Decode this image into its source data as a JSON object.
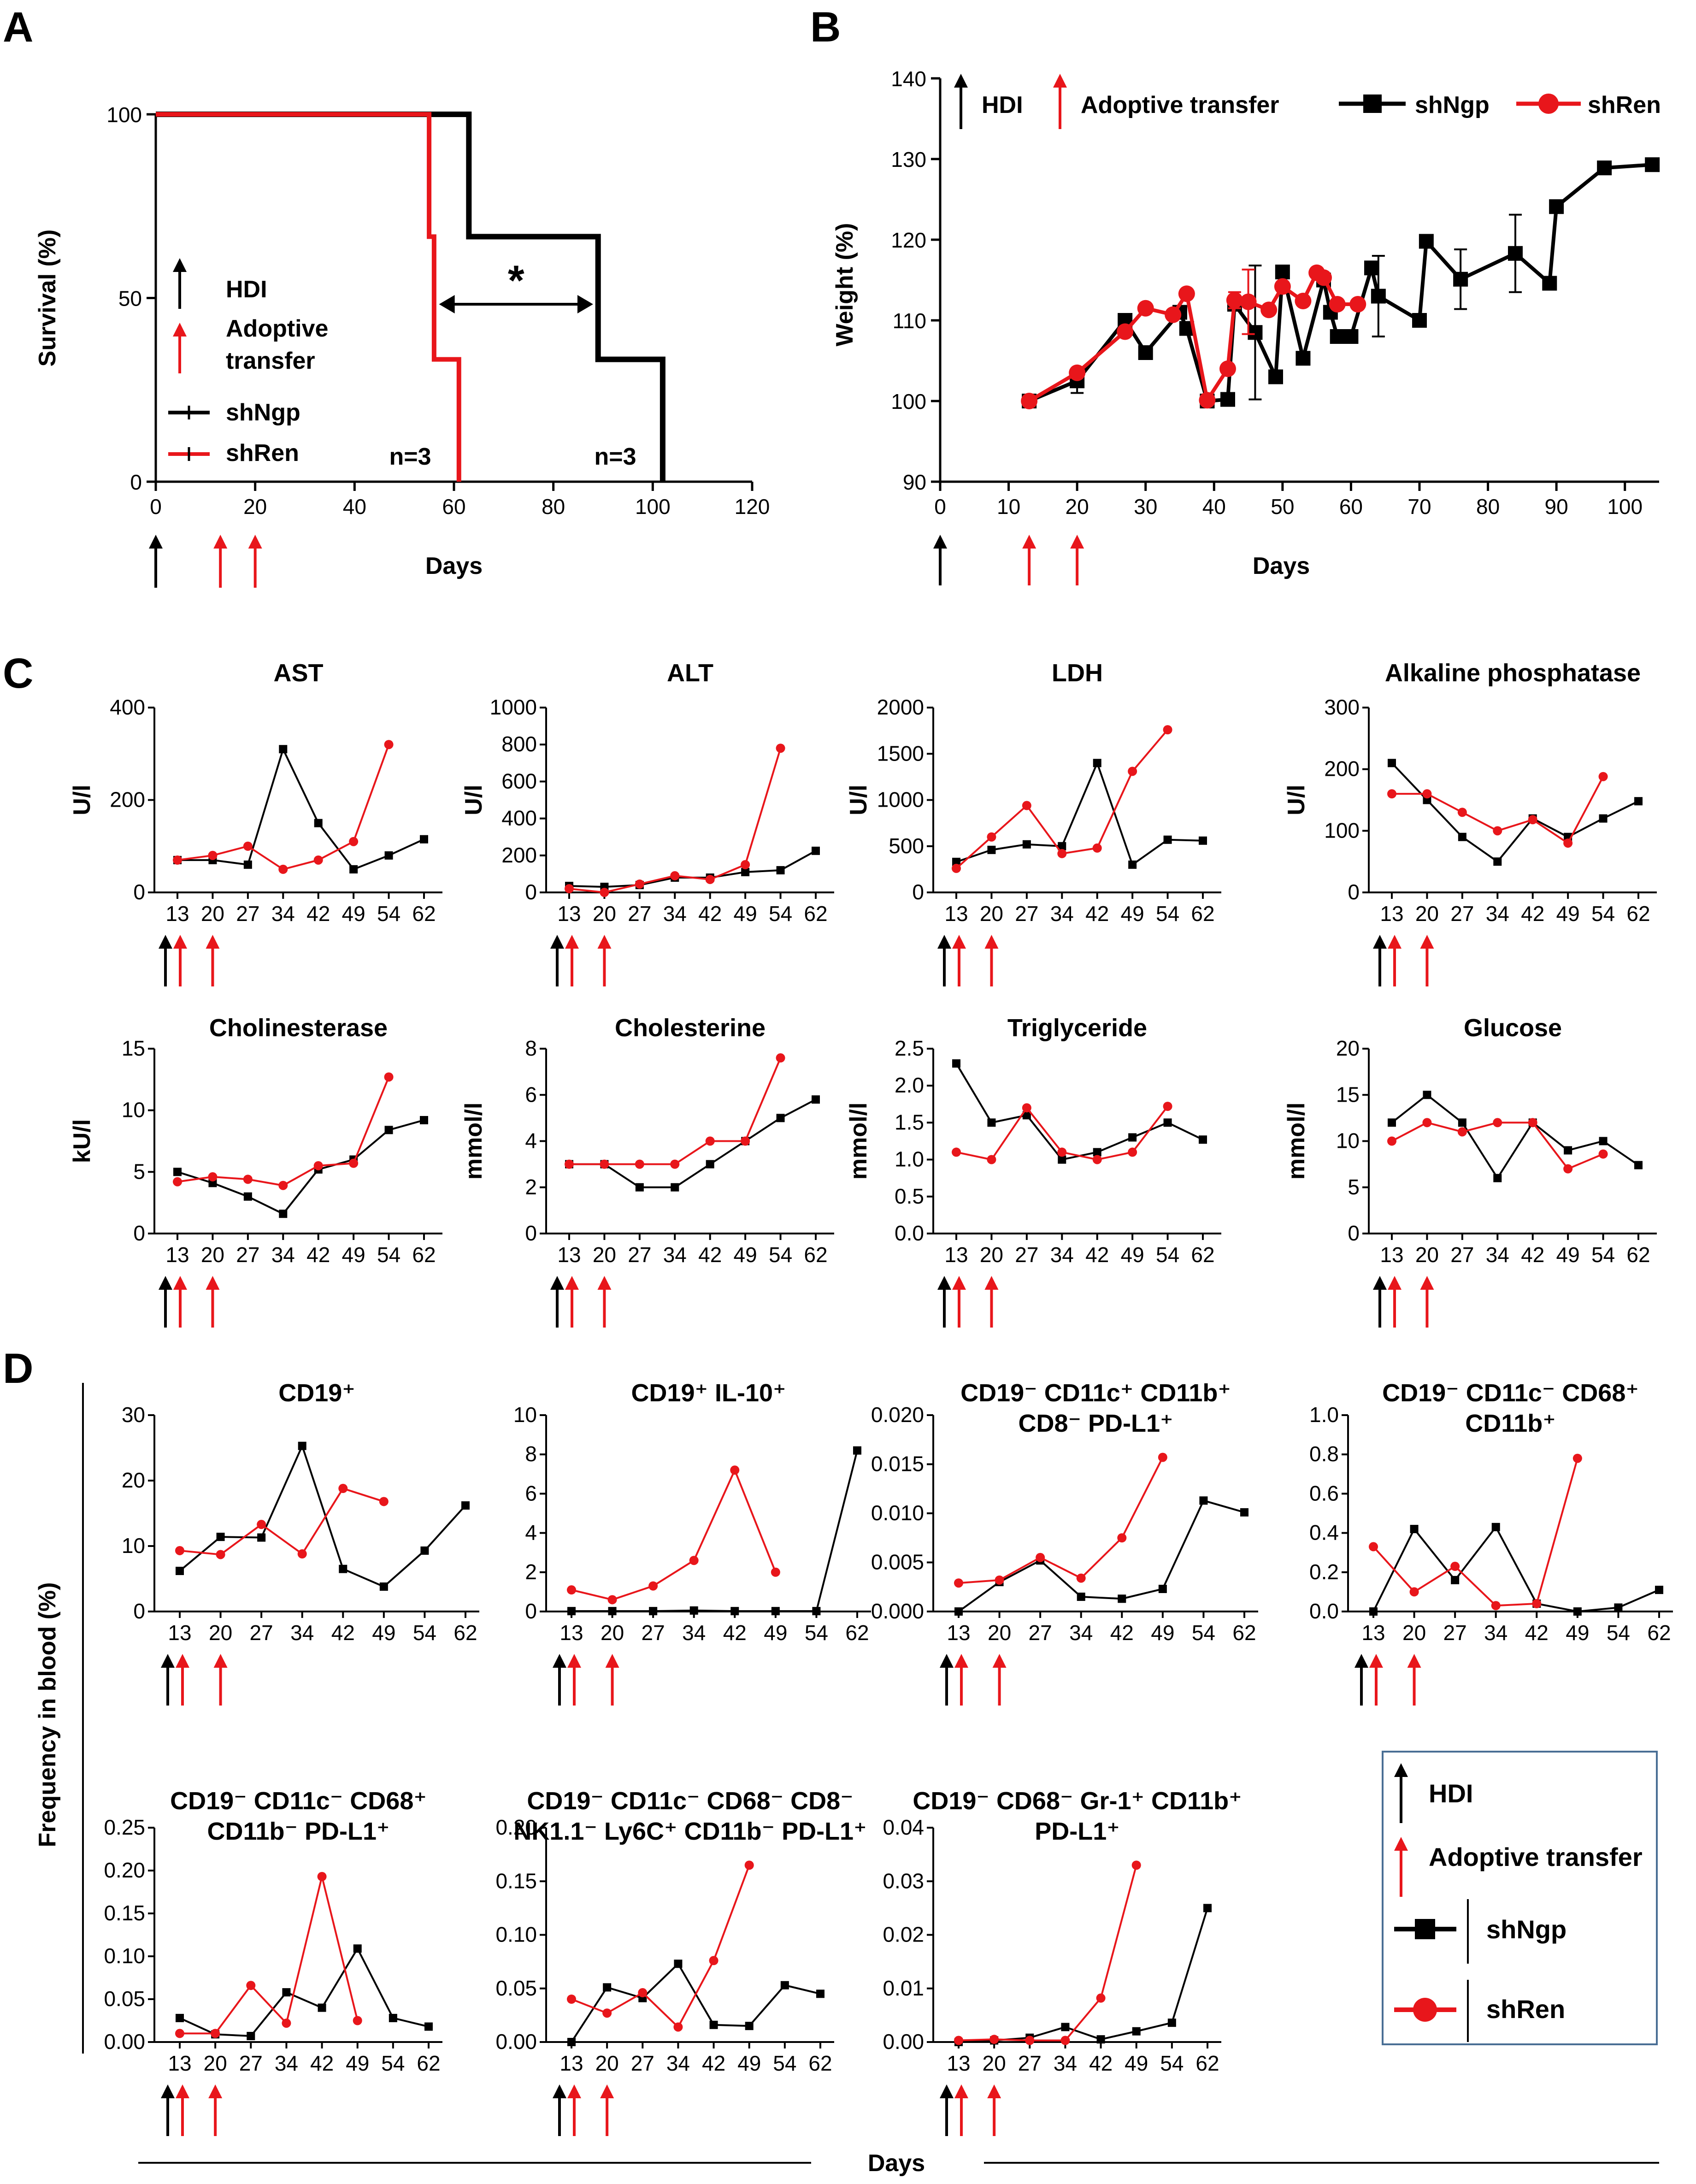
{
  "colors": {
    "shNgp": "#000000",
    "shRen": "#e8161b",
    "hdi_arrow": "#000000",
    "transfer_arrow": "#e8161b",
    "legend_border": "#4a6f95"
  },
  "panels": {
    "A": "A",
    "B": "B",
    "C": "C",
    "D": "D"
  },
  "shared": {
    "days_label": "Days",
    "frequency_label": "Frequency in blood (%)",
    "legend": {
      "hdi": "HDI",
      "adoptive_transfer": "Adoptive transfer",
      "shNgp": "shNgp",
      "shRen": "shRen"
    }
  },
  "chart_data": [
    {
      "id": "A",
      "type": "line",
      "subtype": "kaplan-meier",
      "ylabel": "Survival (%)",
      "xlabel": "Days",
      "xlim": [
        0,
        120
      ],
      "ylim": [
        0,
        100
      ],
      "xticks": [
        0,
        20,
        40,
        60,
        80,
        100,
        120
      ],
      "yticks": [
        0,
        50,
        100
      ],
      "series": [
        {
          "name": "shNgp",
          "x": [
            0,
            63,
            63,
            89,
            89,
            102,
            102
          ],
          "y": [
            100,
            100,
            66.7,
            66.7,
            33.3,
            33.3,
            0
          ],
          "n_label": "n=3"
        },
        {
          "name": "shRen",
          "x": [
            0,
            55,
            55,
            56,
            56,
            61,
            61
          ],
          "y": [
            100,
            100,
            66.7,
            66.7,
            33.3,
            33.3,
            0
          ],
          "n_label": "n=3"
        }
      ],
      "annotations": {
        "significance": "*",
        "legend": {
          "hdi": "HDI",
          "adoptive_transfer": "Adoptive\ntransfer",
          "shNgp": "shNgp",
          "shRen": "shRen"
        }
      },
      "arrows": {
        "hdi": [
          0
        ],
        "transfer": [
          13,
          20
        ]
      }
    },
    {
      "id": "B",
      "type": "line",
      "ylabel": "Weight (%)",
      "xlabel": "Days",
      "xlim": [
        0,
        105
      ],
      "ylim": [
        90,
        140
      ],
      "xticks": [
        0,
        10,
        20,
        30,
        40,
        50,
        60,
        70,
        80,
        90,
        100
      ],
      "yticks": [
        90,
        100,
        110,
        120,
        130,
        140
      ],
      "series": [
        {
          "name": "shNgp",
          "x": [
            13,
            20,
            27,
            30,
            35,
            36,
            39,
            42,
            43,
            46,
            49,
            50,
            53,
            56,
            57,
            58,
            60,
            63,
            64,
            70,
            71,
            76,
            84,
            89,
            90,
            97,
            104
          ],
          "y": [
            100,
            102.5,
            110,
            106,
            111,
            109,
            100,
            100.2,
            112,
            108.5,
            103,
            116,
            105.3,
            115,
            111,
            108,
            108,
            116.5,
            113,
            110,
            119.8,
            115.1,
            118.3,
            114.6,
            124.1,
            128.9,
            129.3
          ],
          "err": [
            0,
            1.5,
            0,
            0,
            0,
            0,
            0,
            0,
            0,
            8.3,
            0,
            0,
            0,
            0,
            0,
            0,
            0,
            0,
            5,
            0,
            0,
            3.7,
            4.8,
            0,
            0,
            0,
            0
          ]
        },
        {
          "name": "shRen",
          "x": [
            13,
            20,
            27,
            30,
            34,
            36,
            39,
            42,
            43,
            45,
            48,
            50,
            53,
            55,
            56,
            58,
            61
          ],
          "y": [
            100,
            103.5,
            108.6,
            111.5,
            110.7,
            113.3,
            100.1,
            104,
            112.5,
            112.3,
            111.3,
            114.2,
            112.4,
            115.9,
            115.3,
            112,
            112
          ],
          "err": [
            0,
            0,
            0,
            0,
            0,
            0,
            0,
            0,
            1,
            4,
            0,
            0,
            0,
            0,
            0,
            0,
            0
          ]
        }
      ],
      "legend": {
        "hdi": "HDI",
        "adoptive_transfer": "Adoptive transfer",
        "shNgp": "shNgp",
        "shRen": "shRen"
      },
      "arrows": {
        "hdi": [
          0
        ],
        "transfer": [
          13,
          20
        ]
      }
    },
    {
      "id": "C1",
      "type": "line",
      "title": "AST",
      "ylabel": "U/l",
      "categories": [
        "13",
        "20",
        "27",
        "34",
        "42",
        "49",
        "54",
        "62"
      ],
      "ylim": [
        0,
        400
      ],
      "yticks": [
        0,
        200,
        400
      ],
      "series": [
        {
          "name": "shNgp",
          "values": [
            70,
            70,
            60,
            310,
            150,
            50,
            80,
            115
          ]
        },
        {
          "name": "shRen",
          "values": [
            70,
            80,
            100,
            50,
            70,
            110,
            320,
            null
          ]
        }
      ]
    },
    {
      "id": "C2",
      "type": "line",
      "title": "ALT",
      "ylabel": "U/l",
      "categories": [
        "13",
        "20",
        "27",
        "34",
        "42",
        "49",
        "54",
        "62"
      ],
      "ylim": [
        0,
        1000
      ],
      "yticks": [
        0,
        200,
        400,
        600,
        800,
        1000
      ],
      "series": [
        {
          "name": "shNgp",
          "values": [
            35,
            30,
            40,
            80,
            80,
            110,
            120,
            225
          ]
        },
        {
          "name": "shRen",
          "values": [
            20,
            0,
            45,
            90,
            70,
            150,
            780,
            null
          ]
        }
      ]
    },
    {
      "id": "C3",
      "type": "line",
      "title": "LDH",
      "ylabel": "U/l",
      "categories": [
        "13",
        "20",
        "27",
        "34",
        "42",
        "49",
        "54",
        "62"
      ],
      "ylim": [
        0,
        2000
      ],
      "yticks": [
        0,
        500,
        1000,
        1500,
        2000
      ],
      "series": [
        {
          "name": "shNgp",
          "values": [
            330,
            460,
            520,
            500,
            1400,
            300,
            570,
            560
          ]
        },
        {
          "name": "shRen",
          "values": [
            260,
            600,
            940,
            420,
            480,
            1310,
            1760,
            null
          ]
        }
      ]
    },
    {
      "id": "C4",
      "type": "line",
      "title": "Alkaline phosphatase",
      "ylabel": "U/l",
      "categories": [
        "13",
        "20",
        "27",
        "34",
        "42",
        "49",
        "54",
        "62"
      ],
      "ylim": [
        0,
        300
      ],
      "yticks": [
        0,
        100,
        200,
        300
      ],
      "series": [
        {
          "name": "shNgp",
          "values": [
            210,
            150,
            90,
            50,
            120,
            90,
            120,
            148
          ]
        },
        {
          "name": "shRen",
          "values": [
            160,
            160,
            130,
            100,
            118,
            80,
            188,
            null
          ]
        }
      ]
    },
    {
      "id": "C5",
      "type": "line",
      "title": "Cholinesterase",
      "ylabel": "kU/l",
      "categories": [
        "13",
        "20",
        "27",
        "34",
        "42",
        "49",
        "54",
        "62"
      ],
      "ylim": [
        0,
        15
      ],
      "yticks": [
        0,
        5,
        10,
        15
      ],
      "series": [
        {
          "name": "shNgp",
          "values": [
            5,
            4.1,
            3,
            1.6,
            5.2,
            6,
            8.4,
            9.2
          ]
        },
        {
          "name": "shRen",
          "values": [
            4.2,
            4.6,
            4.4,
            3.9,
            5.5,
            5.7,
            12.7,
            null
          ]
        }
      ]
    },
    {
      "id": "C6",
      "type": "line",
      "title": "Cholesterine",
      "ylabel": "mmol/l",
      "categories": [
        "13",
        "20",
        "27",
        "34",
        "42",
        "49",
        "54",
        "62"
      ],
      "ylim": [
        0,
        8
      ],
      "yticks": [
        0,
        2,
        4,
        6,
        8
      ],
      "series": [
        {
          "name": "shNgp",
          "values": [
            3,
            3,
            2,
            2,
            3,
            4,
            5,
            5.8
          ]
        },
        {
          "name": "shRen",
          "values": [
            3,
            3,
            3,
            3,
            4,
            4,
            7.6,
            null
          ]
        }
      ]
    },
    {
      "id": "C7",
      "type": "line",
      "title": "Triglyceride",
      "ylabel": "mmol/l",
      "categories": [
        "13",
        "20",
        "27",
        "34",
        "42",
        "49",
        "54",
        "62"
      ],
      "ylim": [
        0,
        2.5
      ],
      "yticks": [
        0.0,
        0.5,
        1.0,
        1.5,
        2.0,
        2.5
      ],
      "series": [
        {
          "name": "shNgp",
          "values": [
            2.3,
            1.5,
            1.6,
            1.0,
            1.1,
            1.3,
            1.5,
            1.27
          ]
        },
        {
          "name": "shRen",
          "values": [
            1.1,
            1.0,
            1.7,
            1.1,
            1.0,
            1.1,
            1.72,
            null
          ]
        }
      ]
    },
    {
      "id": "C8",
      "type": "line",
      "title": "Glucose",
      "ylabel": "mmol/l",
      "categories": [
        "13",
        "20",
        "27",
        "34",
        "42",
        "49",
        "54",
        "62"
      ],
      "ylim": [
        0,
        20
      ],
      "yticks": [
        0,
        5,
        10,
        15,
        20
      ],
      "series": [
        {
          "name": "shNgp",
          "values": [
            12,
            15,
            12,
            6,
            12,
            9,
            10,
            7.4
          ]
        },
        {
          "name": "shRen",
          "values": [
            10,
            12,
            11,
            12,
            12,
            7,
            8.6,
            null
          ]
        }
      ]
    },
    {
      "id": "D1",
      "type": "line",
      "title": "CD19⁺",
      "categories": [
        "13",
        "20",
        "27",
        "34",
        "42",
        "49",
        "54",
        "62"
      ],
      "ylim": [
        0,
        30
      ],
      "yticks": [
        0,
        10,
        20,
        30
      ],
      "series": [
        {
          "name": "shNgp",
          "values": [
            6.2,
            11.4,
            11.3,
            25.3,
            6.5,
            3.8,
            9.3,
            16.2
          ]
        },
        {
          "name": "shRen",
          "values": [
            9.3,
            8.7,
            13.3,
            8.8,
            18.8,
            16.8,
            null,
            null
          ]
        }
      ]
    },
    {
      "id": "D2",
      "type": "line",
      "title": "CD19⁺ IL-10⁺",
      "categories": [
        "13",
        "20",
        "27",
        "34",
        "42",
        "49",
        "54",
        "62"
      ],
      "ylim": [
        0,
        10
      ],
      "yticks": [
        0,
        2,
        4,
        6,
        8,
        10
      ],
      "series": [
        {
          "name": "shNgp",
          "values": [
            0.02,
            0.02,
            0.02,
            0.05,
            0.02,
            0.02,
            0.02,
            8.2
          ]
        },
        {
          "name": "shRen",
          "values": [
            1.1,
            0.6,
            1.3,
            2.6,
            7.2,
            2.0,
            null,
            null
          ]
        }
      ]
    },
    {
      "id": "D3",
      "type": "line",
      "title": "CD19⁻ CD11c⁺ CD11b⁺\nCD8⁻ PD-L1⁺",
      "categories": [
        "13",
        "20",
        "27",
        "34",
        "42",
        "49",
        "54",
        "62"
      ],
      "ylim": [
        0,
        0.02
      ],
      "yticks": [
        0.0,
        0.005,
        0.01,
        0.015,
        0.02
      ],
      "series": [
        {
          "name": "shNgp",
          "values": [
            0.0,
            0.003,
            0.0052,
            0.0015,
            0.0013,
            0.0023,
            0.0113,
            0.0101
          ]
        },
        {
          "name": "shRen",
          "values": [
            0.0029,
            0.0032,
            0.0055,
            0.0034,
            0.0075,
            0.0157,
            null,
            null
          ]
        }
      ]
    },
    {
      "id": "D4",
      "type": "line",
      "title": "CD19⁻ CD11c⁻ CD68⁺\nCD11b⁺",
      "categories": [
        "13",
        "20",
        "27",
        "34",
        "42",
        "49",
        "54",
        "62"
      ],
      "ylim": [
        0,
        1.0
      ],
      "yticks": [
        0.0,
        0.2,
        0.4,
        0.6,
        0.8,
        1.0
      ],
      "series": [
        {
          "name": "shNgp",
          "values": [
            0.0,
            0.42,
            0.16,
            0.43,
            0.04,
            0.0,
            0.02,
            0.11
          ]
        },
        {
          "name": "shRen",
          "values": [
            0.33,
            0.1,
            0.23,
            0.03,
            0.04,
            0.78,
            null,
            null
          ]
        }
      ]
    },
    {
      "id": "D5",
      "type": "line",
      "title": "CD19⁻ CD11c⁻ CD68⁺\nCD11b⁻ PD-L1⁺",
      "categories": [
        "13",
        "20",
        "27",
        "34",
        "42",
        "49",
        "54",
        "62"
      ],
      "ylim": [
        0,
        0.25
      ],
      "yticks": [
        0.0,
        0.05,
        0.1,
        0.15,
        0.2,
        0.25
      ],
      "series": [
        {
          "name": "shNgp",
          "values": [
            0.028,
            0.009,
            0.007,
            0.058,
            0.04,
            0.109,
            0.028,
            0.018
          ]
        },
        {
          "name": "shRen",
          "values": [
            0.01,
            0.01,
            0.066,
            0.022,
            0.193,
            0.025,
            null,
            null
          ]
        }
      ]
    },
    {
      "id": "D6",
      "type": "line",
      "title": "CD19⁻ CD11c⁻ CD68⁻ CD8⁻\nNK1.1⁻ Ly6C⁺ CD11b⁻ PD-L1⁺",
      "categories": [
        "13",
        "20",
        "27",
        "34",
        "42",
        "49",
        "54",
        "62"
      ],
      "ylim": [
        0,
        0.2
      ],
      "yticks": [
        0.0,
        0.05,
        0.1,
        0.15,
        0.2
      ],
      "series": [
        {
          "name": "shNgp",
          "values": [
            0.0,
            0.051,
            0.041,
            0.073,
            0.016,
            0.015,
            0.053,
            0.045
          ]
        },
        {
          "name": "shRen",
          "values": [
            0.04,
            0.027,
            0.046,
            0.014,
            0.076,
            0.165,
            null,
            null
          ]
        }
      ]
    },
    {
      "id": "D7",
      "type": "line",
      "title": "CD19⁻ CD68⁻ Gr-1⁺ CD11b⁺\nPD-L1⁺",
      "categories": [
        "13",
        "20",
        "27",
        "34",
        "42",
        "49",
        "54",
        "62"
      ],
      "ylim": [
        0,
        0.04
      ],
      "yticks": [
        0.0,
        0.01,
        0.02,
        0.03,
        0.04
      ],
      "series": [
        {
          "name": "shNgp",
          "values": [
            0.0,
            0.0003,
            0.0008,
            0.0028,
            0.0005,
            0.002,
            0.0036,
            0.025
          ]
        },
        {
          "name": "shRen",
          "values": [
            0.0003,
            0.0005,
            0.0003,
            0.0003,
            0.0082,
            0.033,
            null,
            null
          ]
        }
      ]
    }
  ]
}
